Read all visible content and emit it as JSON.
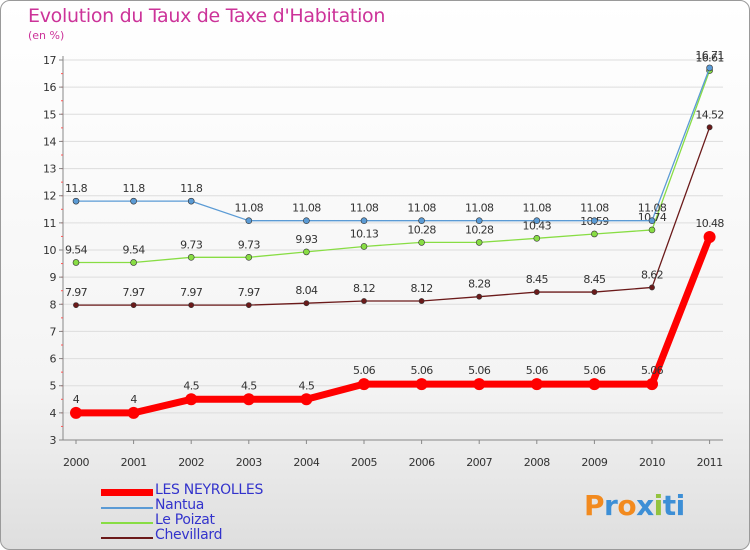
{
  "title": "Evolution du Taux de Taxe d'Habitation",
  "subtitle": "(en %)",
  "brand": [
    "P",
    "r",
    "o",
    "x",
    "i",
    "ti"
  ],
  "chart_data": {
    "type": "line",
    "title": "Evolution du Taux de Taxe d'Habitation",
    "ylabel": "(en %)",
    "xlabel": "",
    "ylim": [
      3,
      17
    ],
    "yticks": [
      "3",
      "4",
      "5",
      "6",
      "7",
      "8",
      "9",
      "10",
      "11",
      "12",
      "13",
      "14",
      "15",
      "16",
      "17"
    ],
    "categories": [
      "2000",
      "2001",
      "2002",
      "2003",
      "2004",
      "2005",
      "2006",
      "2007",
      "2008",
      "2009",
      "2010",
      "2011"
    ],
    "legend": "bottom-left",
    "series": [
      {
        "name": "Chevillard",
        "color": "#6b1a1a",
        "width": 1.3,
        "marker": 2.6,
        "values": [
          7.97,
          7.97,
          7.97,
          7.97,
          8.04,
          8.12,
          8.12,
          8.28,
          8.45,
          8.45,
          8.62,
          14.52
        ],
        "labels": [
          "7.97",
          "7.97",
          "7.97",
          "7.97",
          "8.04",
          "8.12",
          "8.12",
          "8.28",
          "8.45",
          "8.45",
          "8.62",
          "14.52"
        ]
      },
      {
        "name": "Le Poizat",
        "color": "#88dd44",
        "width": 1.3,
        "marker": 3,
        "values": [
          9.54,
          9.54,
          9.73,
          9.73,
          9.93,
          10.13,
          10.28,
          10.28,
          10.43,
          10.59,
          10.74,
          16.61
        ],
        "labels": [
          "9.54",
          "9.54",
          "9.73",
          "9.73",
          "9.93",
          "10.13",
          "10.28",
          "10.28",
          "10.43",
          "10.59",
          "10.74",
          "16.61"
        ]
      },
      {
        "name": "Nantua",
        "color": "#5b9bd5",
        "width": 1.3,
        "marker": 3,
        "values": [
          11.8,
          11.8,
          11.8,
          11.08,
          11.08,
          11.08,
          11.08,
          11.08,
          11.08,
          11.08,
          11.08,
          16.71
        ],
        "labels": [
          "11.8",
          "11.8",
          "11.8",
          "11.08",
          "11.08",
          "11.08",
          "11.08",
          "11.08",
          "11.08",
          "11.08",
          "11.08",
          "16.71"
        ]
      },
      {
        "name": "LES NEYROLLES",
        "color": "#ff0000",
        "width": 7,
        "marker": 6,
        "values": [
          4,
          4,
          4.5,
          4.5,
          4.5,
          5.06,
          5.06,
          5.06,
          5.06,
          5.06,
          5.06,
          10.48
        ],
        "labels": [
          "4",
          "4",
          "4.5",
          "4.5",
          "4.5",
          "5.06",
          "5.06",
          "5.06",
          "5.06",
          "5.06",
          "5.06",
          "10.48"
        ]
      }
    ],
    "legend_order": [
      "LES NEYROLLES",
      "Nantua",
      "Le Poizat",
      "Chevillard"
    ]
  }
}
